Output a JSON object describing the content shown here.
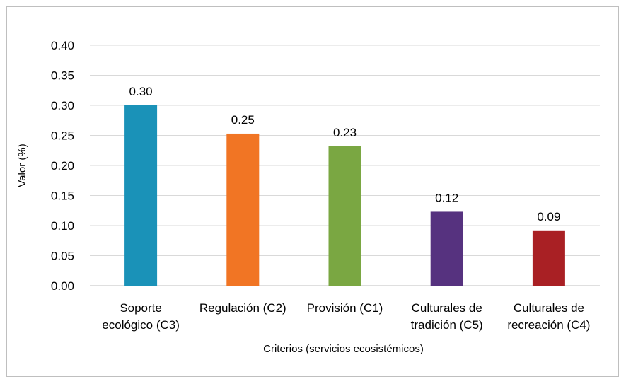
{
  "chart_data": {
    "type": "bar",
    "title": "",
    "xlabel": "Criterios (servicios ecosistémicos)",
    "ylabel": "Valor (%)",
    "ylim": [
      0,
      0.4
    ],
    "yticks": [
      "0.00",
      "0.05",
      "0.10",
      "0.15",
      "0.20",
      "0.25",
      "0.30",
      "0.35",
      "0.40"
    ],
    "grid": true,
    "legend": "none",
    "categories": [
      [
        "Soporte",
        "ecológico (C3)"
      ],
      [
        "Regulación (C2)"
      ],
      [
        "Provisión (C1)"
      ],
      [
        "Culturales de",
        "tradición (C5)"
      ],
      [
        "Culturales de",
        "recreación (C4)"
      ]
    ],
    "values": [
      0.3,
      0.253,
      0.232,
      0.123,
      0.092
    ],
    "data_labels": [
      "0.30",
      "0.25",
      "0.23",
      "0.12",
      "0.09"
    ],
    "colors": [
      "#1a92b8",
      "#f17524",
      "#7aa742",
      "#56327f",
      "#a92024"
    ]
  }
}
